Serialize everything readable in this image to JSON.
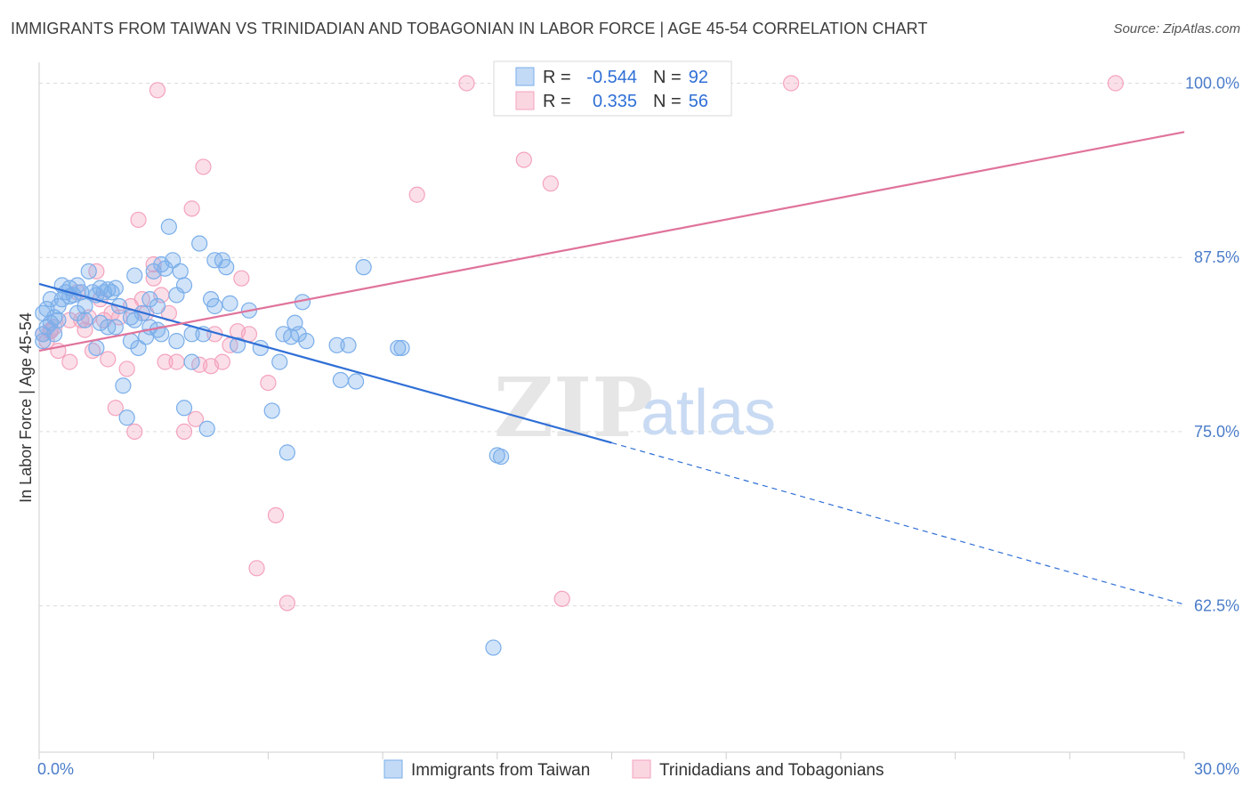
{
  "title": "IMMIGRANTS FROM TAIWAN VS TRINIDADIAN AND TOBAGONIAN IN LABOR FORCE | AGE 45-54 CORRELATION CHART",
  "source": "Source: ZipAtlas.com",
  "watermark": {
    "zip": "ZIP",
    "atlas": "atlas"
  },
  "legend": {
    "rows": [
      {
        "r_label": "R =",
        "r_value": "-0.544",
        "n_label": "N =",
        "n_value": "92",
        "color": "#7aaeea"
      },
      {
        "r_label": "R =",
        "r_value": "0.335",
        "n_label": "N =",
        "n_value": "56",
        "color": "#f4a3bd"
      }
    ]
  },
  "chart_data": {
    "type": "scatter",
    "title": "IMMIGRANTS FROM TAIWAN VS TRINIDADIAN AND TOBAGONIAN IN LABOR FORCE | AGE 45-54 CORRELATION CHART",
    "xlabel": "",
    "ylabel": "In Labor Force | Age 45-54",
    "xlim": [
      0,
      30
    ],
    "ylim": [
      52,
      101.5
    ],
    "x_tick_labels": [
      {
        "value": 0,
        "label": "0.0%"
      },
      {
        "value": 30,
        "label": "30.0%"
      }
    ],
    "y_tick_labels": [
      {
        "value": 100,
        "label": "100.0%"
      },
      {
        "value": 87.5,
        "label": "87.5%"
      },
      {
        "value": 75,
        "label": "75.0%"
      },
      {
        "value": 62.5,
        "label": "62.5%"
      }
    ],
    "grid": true,
    "legend_position": "top-center",
    "series": [
      {
        "name": "Immigrants from Taiwan",
        "color": "#7aaeea",
        "line_color": "#2f6fd6",
        "trend": {
          "x0": 0,
          "y0": 85.6,
          "x1": 15,
          "y1": 74.2,
          "dash_x1": 30,
          "dash_y1": 62.6
        },
        "points": [
          [
            0.1,
            83.5
          ],
          [
            0.1,
            82.0
          ],
          [
            0.1,
            81.5
          ],
          [
            0.2,
            83.8
          ],
          [
            0.2,
            82.5
          ],
          [
            0.3,
            84.5
          ],
          [
            0.3,
            82.8
          ],
          [
            0.4,
            82.0
          ],
          [
            0.5,
            84.0
          ],
          [
            0.5,
            83.0
          ],
          [
            0.6,
            85.5
          ],
          [
            0.6,
            84.5
          ],
          [
            0.7,
            85.0
          ],
          [
            0.8,
            85.3
          ],
          [
            0.8,
            84.7
          ],
          [
            0.9,
            84.8
          ],
          [
            1.0,
            85.5
          ],
          [
            1.0,
            83.5
          ],
          [
            1.1,
            85.0
          ],
          [
            1.2,
            84.0
          ],
          [
            1.2,
            83.0
          ],
          [
            1.3,
            86.5
          ],
          [
            1.4,
            85.0
          ],
          [
            1.5,
            84.8
          ],
          [
            1.5,
            81.0
          ],
          [
            1.6,
            85.3
          ],
          [
            1.7,
            85.0
          ],
          [
            1.8,
            85.2
          ],
          [
            1.8,
            82.5
          ],
          [
            1.9,
            85.0
          ],
          [
            2.0,
            85.3
          ],
          [
            2.0,
            82.5
          ],
          [
            2.1,
            84.0
          ],
          [
            2.2,
            78.3
          ],
          [
            2.3,
            76.0
          ],
          [
            2.4,
            81.5
          ],
          [
            2.5,
            86.2
          ],
          [
            2.5,
            83.0
          ],
          [
            2.6,
            81.0
          ],
          [
            2.7,
            83.5
          ],
          [
            2.8,
            81.8
          ],
          [
            2.9,
            84.5
          ],
          [
            2.9,
            82.5
          ],
          [
            3.0,
            86.5
          ],
          [
            3.1,
            84.0
          ],
          [
            3.2,
            82.0
          ],
          [
            3.2,
            87.0
          ],
          [
            3.3,
            86.7
          ],
          [
            3.4,
            89.7
          ],
          [
            3.5,
            87.3
          ],
          [
            3.6,
            84.8
          ],
          [
            3.6,
            81.5
          ],
          [
            3.7,
            86.5
          ],
          [
            3.8,
            85.5
          ],
          [
            3.8,
            76.7
          ],
          [
            4.0,
            80.0
          ],
          [
            4.0,
            82.0
          ],
          [
            4.2,
            88.5
          ],
          [
            4.3,
            82.0
          ],
          [
            4.4,
            75.2
          ],
          [
            4.5,
            84.5
          ],
          [
            4.6,
            87.3
          ],
          [
            4.6,
            84.0
          ],
          [
            4.8,
            87.3
          ],
          [
            4.9,
            86.8
          ],
          [
            5.0,
            84.2
          ],
          [
            5.2,
            81.2
          ],
          [
            5.5,
            83.7
          ],
          [
            5.8,
            81.0
          ],
          [
            6.1,
            76.5
          ],
          [
            6.3,
            80.0
          ],
          [
            6.4,
            82.0
          ],
          [
            6.5,
            73.5
          ],
          [
            6.6,
            81.8
          ],
          [
            6.7,
            82.8
          ],
          [
            6.8,
            82.0
          ],
          [
            6.9,
            84.3
          ],
          [
            7.0,
            81.5
          ],
          [
            7.8,
            81.2
          ],
          [
            7.9,
            78.7
          ],
          [
            8.1,
            81.2
          ],
          [
            8.3,
            78.6
          ],
          [
            8.5,
            86.8
          ],
          [
            9.4,
            81.0
          ],
          [
            9.5,
            81.0
          ],
          [
            12.0,
            73.3
          ],
          [
            12.1,
            73.2
          ],
          [
            11.9,
            59.5
          ],
          [
            3.1,
            82.3
          ],
          [
            2.4,
            83.2
          ],
          [
            1.6,
            82.8
          ],
          [
            0.4,
            83.2
          ]
        ]
      },
      {
        "name": "Trinidadians and Tobagonians",
        "color": "#f4a3bd",
        "line_color": "#e0739b",
        "trend": {
          "x0": 0,
          "y0": 80.8,
          "x1": 30,
          "y1": 96.5
        },
        "points": [
          [
            0.1,
            82.0
          ],
          [
            0.2,
            81.5
          ],
          [
            0.3,
            82.3
          ],
          [
            0.4,
            82.5
          ],
          [
            0.5,
            80.8
          ],
          [
            0.8,
            83.0
          ],
          [
            0.8,
            80.0
          ],
          [
            1.0,
            85.0
          ],
          [
            1.1,
            83.0
          ],
          [
            1.2,
            82.3
          ],
          [
            1.3,
            83.2
          ],
          [
            1.4,
            80.8
          ],
          [
            1.5,
            86.5
          ],
          [
            1.6,
            84.5
          ],
          [
            1.7,
            83.0
          ],
          [
            1.8,
            80.2
          ],
          [
            1.9,
            83.5
          ],
          [
            2.0,
            76.7
          ],
          [
            2.1,
            83.2
          ],
          [
            2.3,
            79.5
          ],
          [
            2.4,
            84.0
          ],
          [
            2.5,
            75.0
          ],
          [
            2.6,
            90.2
          ],
          [
            2.7,
            84.5
          ],
          [
            2.8,
            83.5
          ],
          [
            3.0,
            87.0
          ],
          [
            3.0,
            86.0
          ],
          [
            3.2,
            84.8
          ],
          [
            3.1,
            99.5
          ],
          [
            3.3,
            80.0
          ],
          [
            3.4,
            83.5
          ],
          [
            3.6,
            80.0
          ],
          [
            3.8,
            75.0
          ],
          [
            4.0,
            91.0
          ],
          [
            4.1,
            75.9
          ],
          [
            4.2,
            79.8
          ],
          [
            4.3,
            94.0
          ],
          [
            4.5,
            79.7
          ],
          [
            4.6,
            82.0
          ],
          [
            4.8,
            80.0
          ],
          [
            5.0,
            81.2
          ],
          [
            5.2,
            82.2
          ],
          [
            5.3,
            86.0
          ],
          [
            5.5,
            82.0
          ],
          [
            5.7,
            65.2
          ],
          [
            6.0,
            78.5
          ],
          [
            6.2,
            69.0
          ],
          [
            6.5,
            62.7
          ],
          [
            9.9,
            92.0
          ],
          [
            11.2,
            100.0
          ],
          [
            12.7,
            94.5
          ],
          [
            13.4,
            92.8
          ],
          [
            13.7,
            63.0
          ],
          [
            19.7,
            100.0
          ],
          [
            28.2,
            100.0
          ],
          [
            0.3,
            82.2
          ]
        ]
      }
    ]
  }
}
